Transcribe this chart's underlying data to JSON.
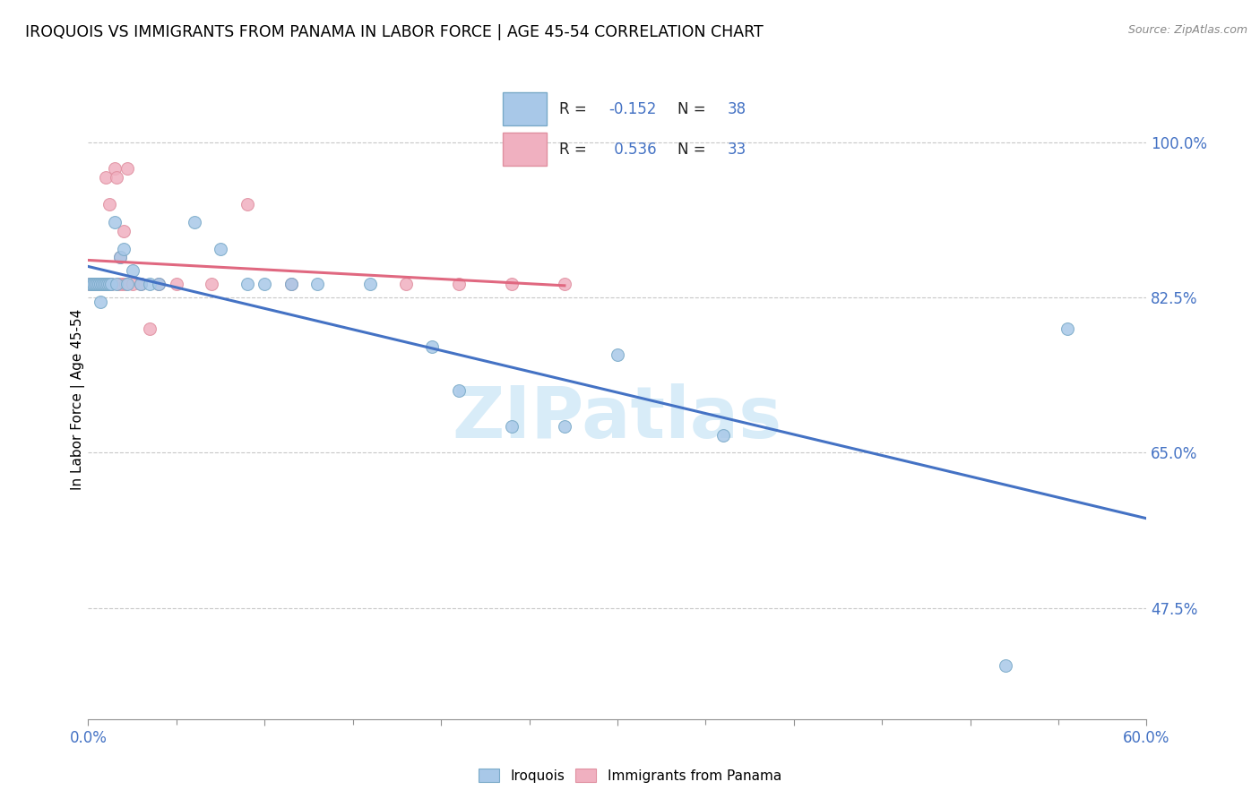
{
  "title": "IROQUOIS VS IMMIGRANTS FROM PANAMA IN LABOR FORCE | AGE 45-54 CORRELATION CHART",
  "source": "Source: ZipAtlas.com",
  "ylabel": "In Labor Force | Age 45-54",
  "xlim": [
    0.0,
    0.6
  ],
  "ylim": [
    0.35,
    1.07
  ],
  "xticks": [
    0.0,
    0.1,
    0.2,
    0.3,
    0.4,
    0.5,
    0.6
  ],
  "xticklabels_show": [
    "0.0%",
    "60.0%"
  ],
  "ytick_positions": [
    0.475,
    0.65,
    0.825,
    1.0
  ],
  "ytick_labels": [
    "47.5%",
    "65.0%",
    "82.5%",
    "100.0%"
  ],
  "r_blue": -0.152,
  "n_blue": 38,
  "r_pink": 0.536,
  "n_pink": 33,
  "iroquois_x": [
    0.001,
    0.002,
    0.003,
    0.004,
    0.005,
    0.006,
    0.007,
    0.007,
    0.008,
    0.009,
    0.01,
    0.011,
    0.012,
    0.013,
    0.015,
    0.016,
    0.018,
    0.02,
    0.022,
    0.025,
    0.03,
    0.035,
    0.04,
    0.06,
    0.075,
    0.09,
    0.1,
    0.115,
    0.13,
    0.16,
    0.195,
    0.21,
    0.24,
    0.27,
    0.3,
    0.36,
    0.52,
    0.555
  ],
  "iroquois_y": [
    0.84,
    0.84,
    0.84,
    0.84,
    0.84,
    0.84,
    0.84,
    0.82,
    0.84,
    0.84,
    0.84,
    0.84,
    0.84,
    0.84,
    0.91,
    0.84,
    0.87,
    0.88,
    0.84,
    0.855,
    0.84,
    0.84,
    0.84,
    0.91,
    0.88,
    0.84,
    0.84,
    0.84,
    0.84,
    0.84,
    0.77,
    0.72,
    0.68,
    0.68,
    0.76,
    0.67,
    0.41,
    0.79
  ],
  "panama_x": [
    0.001,
    0.002,
    0.003,
    0.004,
    0.005,
    0.006,
    0.007,
    0.008,
    0.009,
    0.01,
    0.011,
    0.012,
    0.013,
    0.015,
    0.016,
    0.017,
    0.018,
    0.019,
    0.02,
    0.021,
    0.022,
    0.025,
    0.03,
    0.035,
    0.04,
    0.05,
    0.07,
    0.09,
    0.115,
    0.18,
    0.21,
    0.24,
    0.27
  ],
  "panama_y": [
    0.84,
    0.84,
    0.84,
    0.84,
    0.84,
    0.84,
    0.84,
    0.84,
    0.84,
    0.96,
    0.84,
    0.93,
    0.84,
    0.97,
    0.96,
    0.84,
    0.87,
    0.84,
    0.9,
    0.84,
    0.97,
    0.84,
    0.84,
    0.79,
    0.84,
    0.84,
    0.84,
    0.93,
    0.84,
    0.84,
    0.84,
    0.84,
    0.84
  ],
  "blue_line_color": "#4472c4",
  "pink_line_color": "#e06880",
  "scatter_blue_face": "#a8c8e8",
  "scatter_blue_edge": "#7aaac8",
  "scatter_pink_face": "#f0b0c0",
  "scatter_pink_edge": "#e090a0",
  "grid_color": "#c8c8c8",
  "watermark_text": "ZIPatlas",
  "watermark_color": "#d8ecf8",
  "bg_color": "#ffffff"
}
